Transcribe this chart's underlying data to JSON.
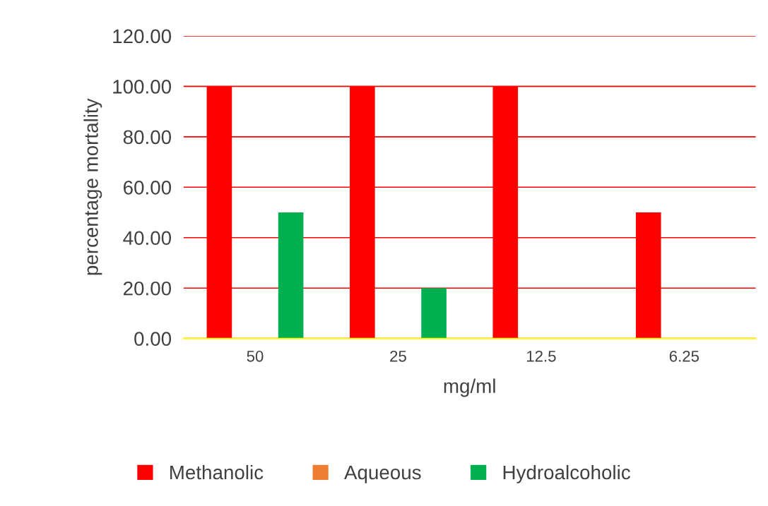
{
  "chart_data": {
    "type": "bar",
    "xlabel": "mg/ml",
    "ylabel": "percentage mortality",
    "categories": [
      "50",
      "25",
      "12.5",
      "6.25"
    ],
    "series": [
      {
        "name": "Methanolic",
        "color": "#ff0000",
        "values": [
          100,
          100,
          100,
          50
        ]
      },
      {
        "name": "Aqueous",
        "color": "#ed7d31",
        "values": [
          0,
          0,
          0,
          0
        ]
      },
      {
        "name": "Hydroalcoholic",
        "color": "#00b050",
        "values": [
          50,
          20,
          0,
          0
        ]
      }
    ],
    "ylim": [
      0,
      120
    ],
    "yticks": [
      {
        "value": 0,
        "label": "0.00"
      },
      {
        "value": 20,
        "label": "20.00"
      },
      {
        "value": 40,
        "label": "40.00"
      },
      {
        "value": 60,
        "label": "60.00"
      },
      {
        "value": 80,
        "label": "80.00"
      },
      {
        "value": 100,
        "label": "100.00"
      },
      {
        "value": 120,
        "label": "120.00"
      }
    ],
    "grid": "y",
    "legend": "bottom"
  }
}
